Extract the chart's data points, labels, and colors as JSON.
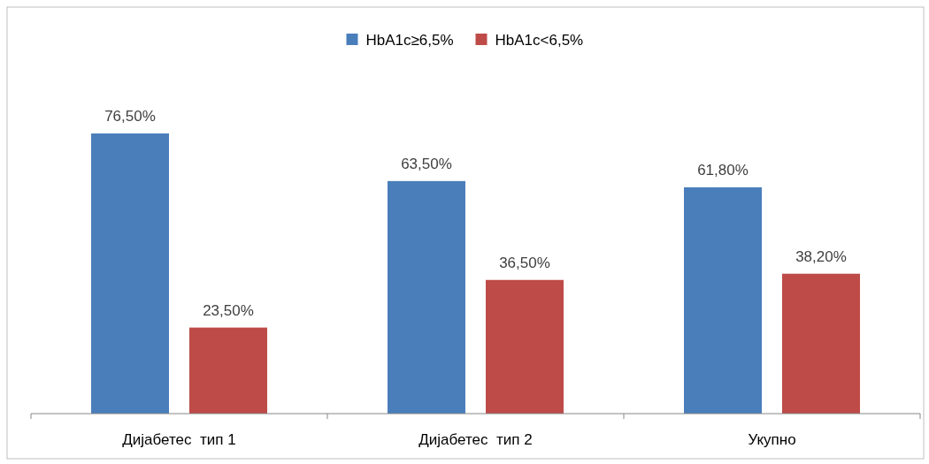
{
  "chart_data": {
    "type": "bar",
    "categories": [
      "Дијабетес  тип 1",
      "Дијабетес  тип 2",
      "Укупно"
    ],
    "series": [
      {
        "name": "HbA1c≥6,5%",
        "color": "#4a7ebb",
        "values": [
          76.5,
          63.5,
          61.8
        ],
        "value_labels": [
          "76,50%",
          "63,50%",
          "61,80%"
        ]
      },
      {
        "name": "HbA1c<6,5%",
        "color": "#be4b48",
        "values": [
          23.5,
          36.5,
          38.2
        ],
        "value_labels": [
          "23,50%",
          "36,50%",
          "38,20%"
        ]
      }
    ],
    "legend": "top"
  }
}
